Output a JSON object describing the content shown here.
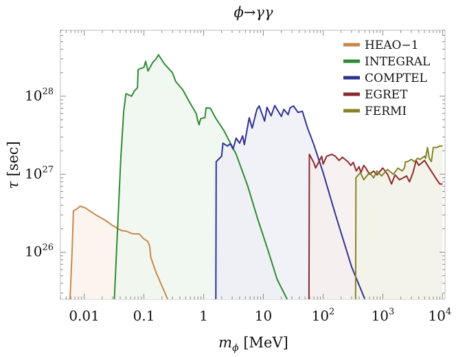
{
  "chart_data": {
    "type": "area",
    "title": "ϕ→γγ",
    "xlabel": "m_ϕ [MeV]",
    "ylabel": "τ [sec]",
    "x_scale": "log",
    "y_scale": "log",
    "xlim": [
      0.004,
      11000
    ],
    "ylim": [
      2.5e+25,
      7e+28
    ],
    "grid": false,
    "legend_position": "top-right",
    "x_ticks": [
      {
        "value": 0.01,
        "label": "0.01"
      },
      {
        "value": 0.1,
        "label": "0.1"
      },
      {
        "value": 1,
        "label": "1"
      },
      {
        "value": 10,
        "label": "10"
      },
      {
        "value": 100,
        "label": "10",
        "exp": "2"
      },
      {
        "value": 1000,
        "label": "10",
        "exp": "3"
      },
      {
        "value": 10000,
        "label": "10",
        "exp": "4"
      }
    ],
    "y_ticks": [
      {
        "value": 1e+26,
        "label": "10",
        "exp": "26"
      },
      {
        "value": 1e+27,
        "label": "10",
        "exp": "27"
      },
      {
        "value": 1e+28,
        "label": "10",
        "exp": "28"
      }
    ],
    "series": [
      {
        "name": "HEAO−1",
        "color": "#c8874a",
        "fill": "#fbf3ec",
        "x": [
          0.0058,
          0.0063,
          0.0066,
          0.0076,
          0.0086,
          0.0105,
          0.013,
          0.017,
          0.022,
          0.03,
          0.042,
          0.052,
          0.065,
          0.083,
          0.098,
          0.115,
          0.125,
          0.13,
          0.16,
          0.25
        ],
        "y": [
          2.5e+25,
          1.15e+26,
          3.4e+26,
          3.6e+26,
          3.9e+26,
          3.7e+26,
          3.3e+26,
          2.9e+26,
          2.6e+26,
          2.2e+26,
          1.9e+26,
          1.85e+26,
          1.72e+26,
          1.72e+26,
          1.5e+26,
          1.38e+26,
          1.2e+26,
          8.6e+25,
          5.5e+25,
          2.5e+25
        ]
      },
      {
        "name": "INTEGRAL",
        "color": "#2f8a33",
        "fill": "#eef7ee",
        "x": [
          0.032,
          0.041,
          0.046,
          0.05,
          0.062,
          0.07,
          0.078,
          0.08,
          0.1,
          0.107,
          0.117,
          0.14,
          0.16,
          0.175,
          0.22,
          0.3,
          0.34,
          0.45,
          0.55,
          0.75,
          0.8,
          0.84,
          0.86,
          0.9,
          1.05,
          1.1,
          1.3,
          1.6,
          2.2,
          3.5,
          5.5,
          8,
          12,
          17,
          25
        ],
        "y": [
          2.5e+25,
          1.6e+27,
          6.5e+27,
          1.08e+28,
          1e+28,
          1.18e+28,
          1.28e+28,
          2.2e+28,
          2.35e+28,
          2.8e+28,
          2.1e+28,
          2.7e+28,
          3e+28,
          3.4e+28,
          2.6e+28,
          2e+28,
          1.55e+28,
          1.2e+28,
          9e+27,
          6e+27,
          4.8e+27,
          4.3e+27,
          4.7e+27,
          5.2e+27,
          5.3e+27,
          7.1e+27,
          7e+27,
          5.2e+27,
          3.6e+27,
          1.8e+27,
          7e+26,
          2.7e+26,
          1.05e+26,
          4.5e+25,
          2.5e+25
        ]
      },
      {
        "name": "COMPTEL",
        "color": "#2e3191",
        "fill": "#eeeef7",
        "x": [
          1.6,
          1.62,
          2.0,
          2.1,
          2.5,
          2.8,
          3.1,
          3.5,
          4.0,
          4.5,
          4.8,
          5.8,
          6.5,
          7.8,
          8.5,
          10.5,
          11.5,
          13.5,
          15.5,
          20,
          22,
          26,
          28,
          32,
          38,
          45,
          55,
          70,
          100,
          160,
          300,
          500
        ],
        "y": [
          2.5e+25,
          1.45e+27,
          1.7e+27,
          2.5e+27,
          2.3e+27,
          2.45e+27,
          2.1e+27,
          2.9e+27,
          2.5e+27,
          3.1e+27,
          2.4e+27,
          5.3e+27,
          3.9e+27,
          6.8e+27,
          7.5e+27,
          4.8e+27,
          7.2e+27,
          5.6e+27,
          7.6e+27,
          5.5e+27,
          6.8e+27,
          5.8e+27,
          7.1e+27,
          7.5e+27,
          6.2e+27,
          6.4e+27,
          3.9e+27,
          2.4e+27,
          1.05e+27,
          3.1e+26,
          6.5e+25,
          2.5e+25
        ]
      },
      {
        "name": "EGRET",
        "color": "#8b2a2e",
        "fill": "#f7eeee",
        "x": [
          58,
          59,
          70,
          75,
          95,
          100,
          115,
          140,
          160,
          185,
          210,
          260,
          290,
          320,
          360,
          400,
          430,
          480,
          520,
          600,
          700,
          800,
          1000,
          1200,
          1400,
          1600,
          1900,
          2200,
          2500,
          2800,
          3200,
          3400,
          3600,
          4000,
          5000,
          6000,
          7000,
          8000,
          9000,
          10000
        ],
        "y": [
          2.5e+25,
          1.8e+27,
          1.4e+27,
          1.2e+27,
          1.7e+27,
          1.35e+27,
          1.7e+27,
          1.8e+27,
          1.7e+27,
          1.5e+27,
          1.65e+27,
          1.45e+27,
          1.3e+27,
          1.42e+27,
          1.1e+27,
          1.25e+27,
          1.05e+27,
          1.3e+27,
          1.2e+27,
          1e+27,
          1.1e+27,
          9.8e+26,
          1.2e+27,
          1e+27,
          7.5e+26,
          9.8e+26,
          8.5e+26,
          9e+26,
          9.5e+26,
          8e+26,
          1.05e+27,
          1.25e+27,
          1.5e+27,
          1.3e+27,
          1.5e+27,
          1.2e+27,
          1e+27,
          8.5e+26,
          7.5e+26,
          7.5e+26
        ]
      },
      {
        "name": "FERMI",
        "color": "#838326",
        "fill": "#f3f3e8",
        "x": [
          350,
          355,
          420,
          480,
          600,
          700,
          800,
          950,
          1200,
          1500,
          1800,
          2100,
          2300,
          2400,
          2600,
          3000,
          3400,
          3800,
          4200,
          5000,
          5200,
          5600,
          6000,
          6500,
          7000,
          8000,
          9000,
          10000
        ],
        "y": [
          2.5e+25,
          9e+26,
          1.05e+27,
          8.5e+26,
          1.05e+27,
          9e+26,
          1.1e+27,
          9.5e+26,
          1.15e+27,
          1e+27,
          1.2e+27,
          1.1e+27,
          1.2e+27,
          1.45e+27,
          1.45e+27,
          1.55e+27,
          1.45e+27,
          1.6e+27,
          1.55e+27,
          1.7e+27,
          1.6e+27,
          2.2e+27,
          1.6e+27,
          1.45e+27,
          2.2e+27,
          2.2e+27,
          2.3e+27,
          2.3e+27
        ]
      }
    ]
  }
}
